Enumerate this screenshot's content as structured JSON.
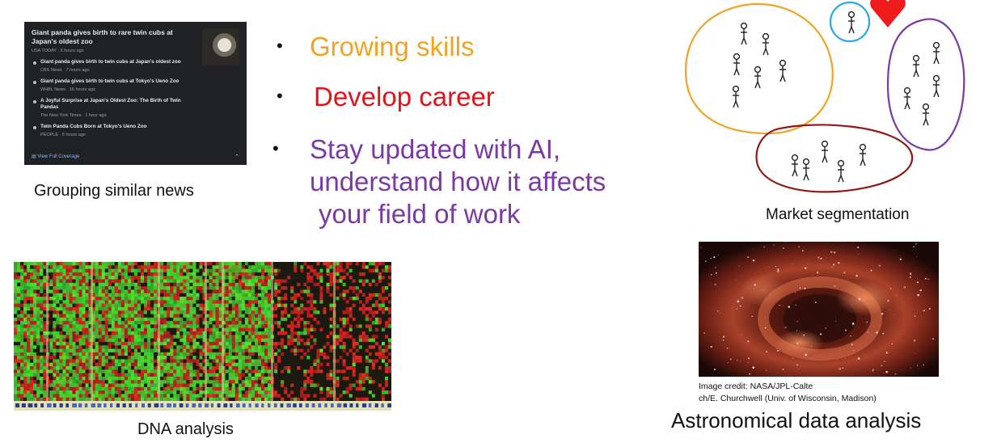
{
  "news_card": {
    "lead_title": "Giant panda gives birth to rare twin cubs at Japan's oldest zoo",
    "lead_source": "USA TODAY · 6 hours ago",
    "items": [
      {
        "title": "Giant panda gives birth to twin cubs at Japan's oldest zoo",
        "source": "CBS News · 7 hours ago"
      },
      {
        "title": "Giant panda gives birth to twin cubs at Tokyo's Ueno Zoo",
        "source": "WHBL News · 16 hours ago"
      },
      {
        "title": "A Joyful Surprise at Japan's Oldest Zoo: The Birth of Twin Pandas",
        "source": "The New York Times · 1 hour ago"
      },
      {
        "title": "Twin Panda Cubs Born at Tokyo's Ueno Zoo",
        "source": "PEOPLE · 6 hours ago"
      }
    ],
    "coverage_link": "View Full Coverage"
  },
  "captions": {
    "news": "Grouping similar news",
    "market": "Market segmentation",
    "dna": "DNA analysis",
    "astro": "Astronomical data analysis"
  },
  "bullets": {
    "b1": "Growing skills",
    "b2": "Develop career",
    "b3_line1": "Stay updated with AI,",
    "b3_line2": "understand how it affects",
    "b3_line3": "your field of work"
  },
  "image_credit": {
    "line1": "Image credit: NASA/JPL-Calte",
    "line2": "ch/E. Churchwell (Univ. of Wisconsin, Madison)"
  },
  "colors": {
    "orange": "#f0a324",
    "red": "#e0141c",
    "purple": "#7b3aa3",
    "blue": "#2aa6e0",
    "dark_red": "#8e1a1a",
    "heart": "#ee1c1c"
  }
}
